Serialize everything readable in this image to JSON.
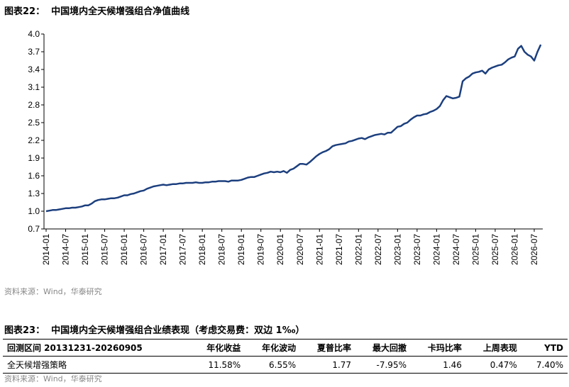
{
  "figure1": {
    "title": "图表22：  中国境内全天候增强组合净值曲线",
    "source": "资料来源：Wind，华泰研究"
  },
  "chart_data": {
    "type": "line",
    "x": [
      "2014-01",
      "2014-02",
      "2014-03",
      "2014-04",
      "2014-05",
      "2014-06",
      "2014-07",
      "2014-08",
      "2014-09",
      "2014-10",
      "2014-11",
      "2014-12",
      "2015-01",
      "2015-02",
      "2015-03",
      "2015-04",
      "2015-05",
      "2015-06",
      "2015-07",
      "2015-08",
      "2015-09",
      "2015-10",
      "2015-11",
      "2015-12",
      "2016-01",
      "2016-02",
      "2016-03",
      "2016-04",
      "2016-05",
      "2016-06",
      "2016-07",
      "2016-08",
      "2016-09",
      "2016-10",
      "2016-11",
      "2016-12",
      "2017-01",
      "2017-02",
      "2017-03",
      "2017-04",
      "2017-05",
      "2017-06",
      "2017-07",
      "2017-08",
      "2017-09",
      "2017-10",
      "2017-11",
      "2017-12",
      "2018-01",
      "2018-02",
      "2018-03",
      "2018-04",
      "2018-05",
      "2018-06",
      "2018-07",
      "2018-08",
      "2018-09",
      "2018-10",
      "2018-11",
      "2018-12",
      "2019-01",
      "2019-02",
      "2019-03",
      "2019-04",
      "2019-05",
      "2019-06",
      "2019-07",
      "2019-08",
      "2019-09",
      "2019-10",
      "2019-11",
      "2019-12",
      "2020-01",
      "2020-02",
      "2020-03",
      "2020-04",
      "2020-05",
      "2020-06",
      "2020-07",
      "2020-08",
      "2020-09",
      "2020-10",
      "2020-11",
      "2020-12",
      "2021-01",
      "2021-02",
      "2021-03",
      "2021-04",
      "2021-05",
      "2021-06",
      "2021-07",
      "2021-08",
      "2021-09",
      "2021-10",
      "2021-11",
      "2021-12",
      "2022-01",
      "2022-02",
      "2022-03",
      "2022-04",
      "2022-05",
      "2022-06",
      "2022-07",
      "2022-08",
      "2022-09",
      "2022-10",
      "2022-11",
      "2022-12",
      "2023-01",
      "2023-02",
      "2023-03",
      "2023-04",
      "2023-05",
      "2023-06",
      "2023-07",
      "2023-08",
      "2023-09",
      "2023-10",
      "2023-11",
      "2023-12",
      "2024-01",
      "2024-02",
      "2024-03",
      "2024-04",
      "2024-05",
      "2024-06",
      "2024-07",
      "2024-08",
      "2024-09",
      "2024-10",
      "2024-11",
      "2024-12",
      "2025-01",
      "2025-02",
      "2025-03",
      "2025-04",
      "2025-05",
      "2025-06",
      "2025-07",
      "2025-08",
      "2025-09",
      "2025-10",
      "2025-11",
      "2025-12",
      "2026-01",
      "2026-02",
      "2026-03",
      "2026-04",
      "2026-05",
      "2026-06",
      "2026-07",
      "2026-08",
      "2026-09"
    ],
    "series": [
      {
        "color": "#1c3f7e",
        "values": [
          1.0,
          1.01,
          1.02,
          1.02,
          1.03,
          1.04,
          1.05,
          1.05,
          1.06,
          1.06,
          1.07,
          1.08,
          1.1,
          1.1,
          1.13,
          1.17,
          1.19,
          1.2,
          1.2,
          1.21,
          1.22,
          1.22,
          1.23,
          1.25,
          1.27,
          1.27,
          1.29,
          1.3,
          1.32,
          1.34,
          1.35,
          1.38,
          1.4,
          1.42,
          1.43,
          1.44,
          1.45,
          1.44,
          1.45,
          1.46,
          1.46,
          1.47,
          1.47,
          1.48,
          1.48,
          1.48,
          1.49,
          1.48,
          1.48,
          1.49,
          1.49,
          1.5,
          1.5,
          1.51,
          1.51,
          1.51,
          1.5,
          1.52,
          1.52,
          1.52,
          1.53,
          1.55,
          1.57,
          1.58,
          1.58,
          1.6,
          1.62,
          1.64,
          1.65,
          1.67,
          1.66,
          1.67,
          1.66,
          1.68,
          1.65,
          1.7,
          1.72,
          1.76,
          1.8,
          1.8,
          1.79,
          1.83,
          1.88,
          1.93,
          1.97,
          2.0,
          2.02,
          2.05,
          2.1,
          2.12,
          2.13,
          2.14,
          2.15,
          2.18,
          2.19,
          2.21,
          2.23,
          2.24,
          2.22,
          2.25,
          2.27,
          2.29,
          2.3,
          2.31,
          2.3,
          2.33,
          2.33,
          2.38,
          2.43,
          2.44,
          2.48,
          2.5,
          2.55,
          2.59,
          2.62,
          2.62,
          2.64,
          2.65,
          2.68,
          2.7,
          2.73,
          2.78,
          2.88,
          2.95,
          2.93,
          2.91,
          2.92,
          2.94,
          3.2,
          3.25,
          3.28,
          3.33,
          3.35,
          3.36,
          3.38,
          3.33,
          3.4,
          3.43,
          3.45,
          3.47,
          3.48,
          3.52,
          3.57,
          3.6,
          3.62,
          3.75,
          3.8,
          3.7,
          3.65,
          3.62,
          3.55,
          3.7,
          3.82
        ]
      }
    ],
    "xticks": [
      "2014-01",
      "2014-07",
      "2015-01",
      "2015-07",
      "2016-01",
      "2016-07",
      "2017-01",
      "2017-07",
      "2018-01",
      "2018-07",
      "2019-01",
      "2019-07",
      "2020-01",
      "2020-07",
      "2021-01",
      "2021-07",
      "2022-01",
      "2022-07",
      "2023-01",
      "2023-07",
      "2024-01",
      "2024-07",
      "2025-01",
      "2025-07",
      "2026-01",
      "2026-07"
    ],
    "ylim": [
      0.7,
      4.0
    ],
    "yticks": [
      0.7,
      {
        "value": 1.0,
        "label": "1.0"
      },
      1.3,
      1.6,
      1.9,
      2.2,
      2.5,
      2.8,
      3.1,
      3.4,
      3.7,
      {
        "value": 4.0,
        "label": "4.0"
      }
    ]
  },
  "figure2": {
    "title": "图表23：  中国境内全天候增强组合业绩表现（考虑交易费：双边 1‰）",
    "source": "资料来源：Wind，华泰研究"
  },
  "table": {
    "header": [
      "回测区间 20131231-20260905",
      "年化收益",
      "年化波动",
      "夏普比率",
      "最大回撤",
      "卡玛比率",
      "上周表现",
      "YTD"
    ],
    "rows": [
      [
        "全天候增强策略",
        "11.58%",
        "6.55%",
        "1.77",
        "-7.95%",
        "1.46",
        "0.47%",
        "7.40%"
      ]
    ]
  }
}
